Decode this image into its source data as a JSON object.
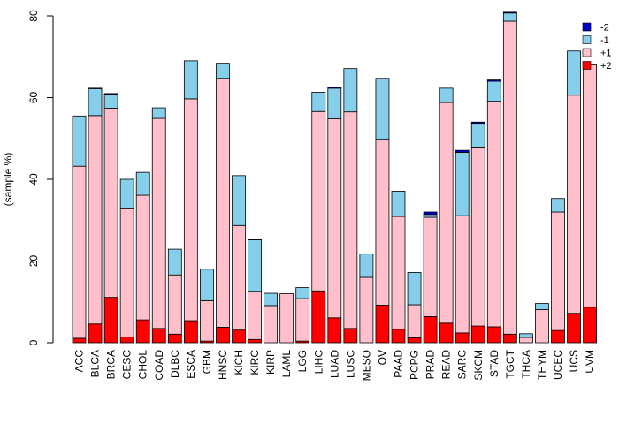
{
  "chart_data": {
    "type": "bar",
    "stacked": true,
    "title": "",
    "xlabel": "",
    "ylabel": "(sample %)",
    "ylim": [
      0,
      80
    ],
    "yticks": [
      0,
      20,
      40,
      60,
      80
    ],
    "legend_position": "top-right",
    "categories": [
      "ACC",
      "BLCA",
      "BRCA",
      "CESC",
      "CHOL",
      "COAD",
      "DLBC",
      "ESCA",
      "GBM",
      "HNSC",
      "KICH",
      "KIRC",
      "KIRP",
      "LAML",
      "LGG",
      "LIHC",
      "LUAD",
      "LUSC",
      "MESO",
      "OV",
      "PAAD",
      "PCPG",
      "PRAD",
      "READ",
      "SARC",
      "SKCM",
      "STAD",
      "TGCT",
      "THCA",
      "THYM",
      "UCEC",
      "UCS",
      "UVM"
    ],
    "series": [
      {
        "name": "+2",
        "color": "#ff0000",
        "values": [
          1.1,
          4.6,
          11.1,
          1.4,
          5.6,
          3.5,
          2.1,
          5.4,
          0.4,
          3.8,
          3.1,
          0.8,
          0,
          0,
          0.4,
          12.7,
          6.1,
          3.5,
          0,
          9.2,
          3.3,
          1.2,
          6.4,
          4.8,
          2.4,
          4.1,
          3.9,
          2.1,
          0,
          0,
          3.0,
          7.2,
          8.7
        ]
      },
      {
        "name": "+1",
        "color": "#ffc0cb",
        "values": [
          42.1,
          51.0,
          46.3,
          31.4,
          30.5,
          51.4,
          14.5,
          54.3,
          9.9,
          60.9,
          25.6,
          11.8,
          9.1,
          12.0,
          10.4,
          43.9,
          48.7,
          53.0,
          16.0,
          40.6,
          27.6,
          8.1,
          24.3,
          54.0,
          28.7,
          43.8,
          55.2,
          76.6,
          1.3,
          8.1,
          29.0,
          53.4,
          59.3
        ]
      },
      {
        "name": "-1",
        "color": "#87ceeb",
        "values": [
          12.3,
          6.6,
          3.4,
          7.2,
          5.6,
          2.6,
          6.3,
          9.3,
          7.7,
          3.7,
          12.2,
          12.6,
          3.0,
          0,
          2.7,
          4.7,
          7.5,
          10.6,
          5.7,
          14.9,
          6.2,
          7.9,
          0.7,
          3.5,
          15.5,
          5.8,
          4.9,
          2.0,
          0.9,
          1.5,
          3.3,
          10.8,
          0
        ]
      },
      {
        "name": "-2",
        "color": "#0000cd",
        "values": [
          0,
          0.1,
          0.2,
          0,
          0,
          0,
          0,
          0,
          0,
          0,
          0,
          0.2,
          0,
          0,
          0,
          0,
          0.3,
          0,
          0,
          0,
          0,
          0,
          0.6,
          0,
          0.5,
          0.3,
          0.3,
          0.2,
          0,
          0,
          0,
          0,
          0
        ]
      }
    ]
  }
}
